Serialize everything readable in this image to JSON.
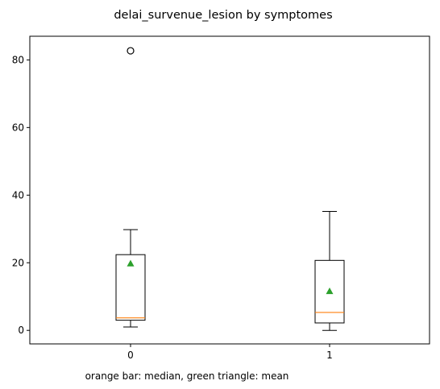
{
  "chart_data": {
    "type": "box",
    "title": "delai_survenue_lesion by symptomes",
    "xlabel": "",
    "ylabel": "",
    "note": "orange bar: median, green triangle: mean",
    "ylim": [
      -4,
      87
    ],
    "yticks": [
      0,
      20,
      40,
      60,
      80
    ],
    "categories": [
      "0",
      "1"
    ],
    "boxes": [
      {
        "label": "0",
        "whisker_low": 1,
        "q1": 3,
        "median": 3.7,
        "q3": 22.4,
        "whisker_high": 29.8,
        "mean": 19.8,
        "outliers": [
          82.7
        ]
      },
      {
        "label": "1",
        "whisker_low": 0,
        "q1": 2.2,
        "median": 5.3,
        "q3": 20.7,
        "whisker_high": 35.2,
        "mean": 11.6,
        "outliers": []
      }
    ],
    "colors": {
      "box": "#000000",
      "median": "#ff7f0e",
      "mean": "#2ca02c"
    },
    "grid": false
  }
}
